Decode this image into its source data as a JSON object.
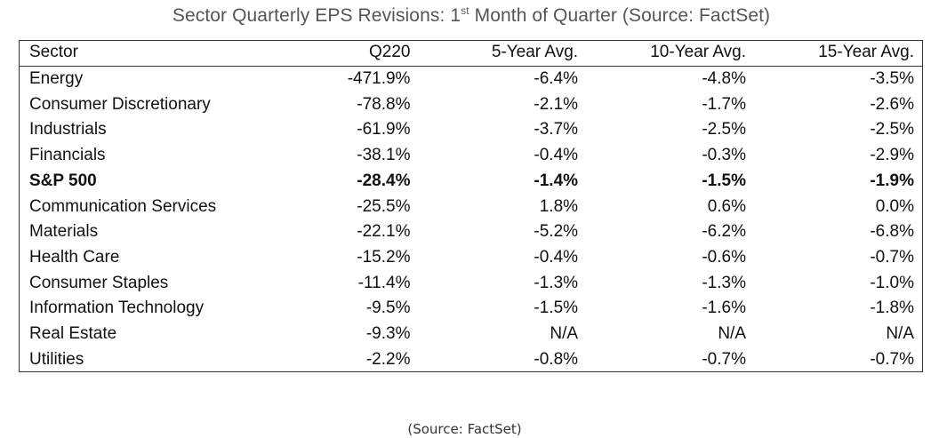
{
  "title": {
    "text_before": "Sector Quarterly EPS Revisions: 1",
    "superscript": "st",
    "text_after": " Month of Quarter (Source: FactSet)"
  },
  "source_caption": "(Source: FactSet)",
  "chart_data": {
    "type": "table",
    "title": "Sector Quarterly EPS Revisions: 1st Month of Quarter (Source: FactSet)",
    "columns": [
      "Sector",
      "Q220",
      "5-Year Avg.",
      "10-Year Avg.",
      "15-Year Avg."
    ],
    "rows": [
      {
        "sector": "Energy",
        "values": [
          "-471.9%",
          "-6.4%",
          "-4.8%",
          "-3.5%"
        ],
        "bold": false
      },
      {
        "sector": "Consumer Discretionary",
        "values": [
          "-78.8%",
          "-2.1%",
          "-1.7%",
          "-2.6%"
        ],
        "bold": false
      },
      {
        "sector": "Industrials",
        "values": [
          "-61.9%",
          "-3.7%",
          "-2.5%",
          "-2.5%"
        ],
        "bold": false
      },
      {
        "sector": "Financials",
        "values": [
          "-38.1%",
          "-0.4%",
          "-0.3%",
          "-2.9%"
        ],
        "bold": false
      },
      {
        "sector": "S&P 500",
        "values": [
          "-28.4%",
          "-1.4%",
          "-1.5%",
          "-1.9%"
        ],
        "bold": true
      },
      {
        "sector": "Communication Services",
        "values": [
          "-25.5%",
          "1.8%",
          "0.6%",
          "0.0%"
        ],
        "bold": false
      },
      {
        "sector": "Materials",
        "values": [
          "-22.1%",
          "-5.2%",
          "-6.2%",
          "-6.8%"
        ],
        "bold": false
      },
      {
        "sector": "Health Care",
        "values": [
          "-15.2%",
          "-0.4%",
          "-0.6%",
          "-0.7%"
        ],
        "bold": false
      },
      {
        "sector": "Consumer Staples",
        "values": [
          "-11.4%",
          "-1.3%",
          "-1.3%",
          "-1.0%"
        ],
        "bold": false
      },
      {
        "sector": "Information Technology",
        "values": [
          "-9.5%",
          "-1.5%",
          "-1.6%",
          "-1.8%"
        ],
        "bold": false
      },
      {
        "sector": "Real Estate",
        "values": [
          "-9.3%",
          "N/A",
          "N/A",
          "N/A"
        ],
        "bold": false
      },
      {
        "sector": "Utilities",
        "values": [
          "-2.2%",
          "-0.8%",
          "-0.7%",
          "-0.7%"
        ],
        "bold": false
      }
    ]
  }
}
